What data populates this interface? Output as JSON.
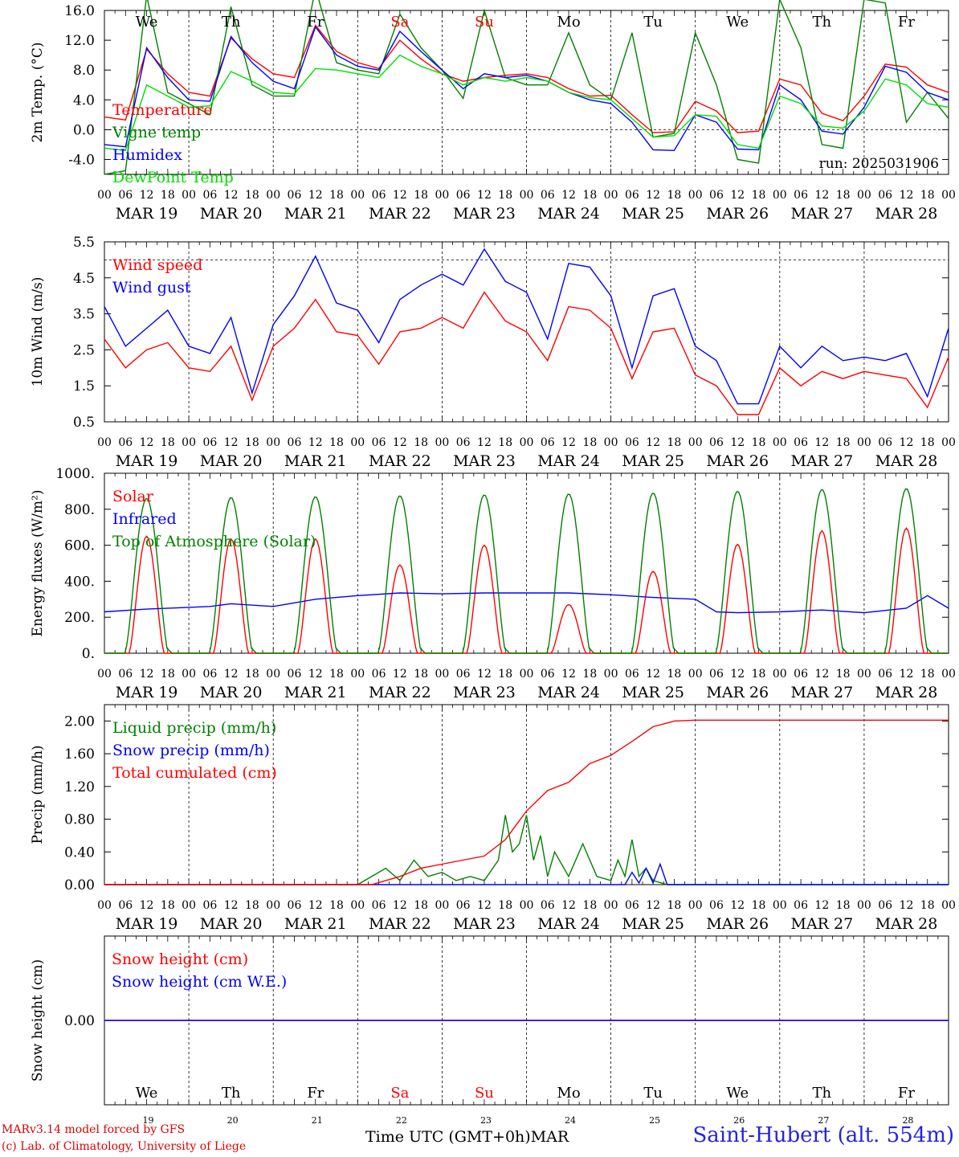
{
  "footer": {
    "credit_line1": "MARv3.14 model forced by GFS",
    "credit_line2": "(c) Lab. of Climatology, University of Liege",
    "x_title": "Time UTC (GMT+0h)MAR",
    "station": "Saint-Hubert (alt. 554m)"
  },
  "colors": {
    "red": "#ff0000",
    "blue": "#0000ff",
    "green": "#008000",
    "lightgreen": "#00dd00",
    "weekend": "#ff0000"
  },
  "days": [
    {
      "abbr": "We",
      "date": "MAR 19",
      "num": "19",
      "weekend": false
    },
    {
      "abbr": "Th",
      "date": "MAR 20",
      "num": "20",
      "weekend": false
    },
    {
      "abbr": "Fr",
      "date": "MAR 21",
      "num": "21",
      "weekend": false
    },
    {
      "abbr": "Sa",
      "date": "MAR 22",
      "num": "22",
      "weekend": true
    },
    {
      "abbr": "Su",
      "date": "MAR 23",
      "num": "23",
      "weekend": true
    },
    {
      "abbr": "Mo",
      "date": "MAR 24",
      "num": "24",
      "weekend": false
    },
    {
      "abbr": "Tu",
      "date": "MAR 25",
      "num": "25",
      "weekend": false
    },
    {
      "abbr": "We",
      "date": "MAR 26",
      "num": "26",
      "weekend": false
    },
    {
      "abbr": "Th",
      "date": "MAR 27",
      "num": "27",
      "weekend": false
    },
    {
      "abbr": "Fr",
      "date": "MAR 28",
      "num": "28",
      "weekend": false
    }
  ],
  "hour_ticks": [
    "00",
    "06",
    "12",
    "18"
  ],
  "final_hour": "00",
  "chart_data": [
    {
      "type": "line",
      "ylabel": "2m Temp. (°C)",
      "ylim": [
        -6,
        16
      ],
      "yticks": [
        "16.0",
        "12.0",
        "8.0",
        "4.0",
        "0.0",
        "-4.0"
      ],
      "ytick_values": [
        16,
        12,
        8,
        4,
        0,
        -4
      ],
      "ref_line": 0,
      "annotation": "run: 2025031906",
      "x_unit": "hours from MAR 19 00 UTC",
      "series": [
        {
          "name": "Temperature",
          "color": "#ff0000",
          "x": [
            0,
            6,
            12,
            18,
            24,
            30,
            36,
            42,
            48,
            54,
            60,
            66,
            72,
            78,
            84,
            90,
            96,
            102,
            108,
            114,
            120,
            126,
            132,
            138,
            144,
            150,
            156,
            162,
            168,
            174,
            180,
            186,
            192,
            198,
            204,
            210,
            216,
            222,
            228,
            234,
            240
          ],
          "values": [
            1.7,
            1.3,
            10.8,
            7.5,
            5.0,
            4.5,
            12.3,
            9.5,
            7.5,
            7.0,
            14.0,
            10.5,
            9.0,
            8.2,
            12.0,
            9.5,
            7.5,
            6.5,
            7.0,
            7.3,
            7.5,
            7.0,
            5.5,
            4.5,
            4.6,
            2.0,
            -0.4,
            -0.3,
            3.8,
            2.5,
            -0.4,
            -0.2,
            6.8,
            6.0,
            2.2,
            1.2,
            4.5,
            8.8,
            8.4,
            6.0,
            5.0
          ]
        },
        {
          "name": "Vigne temp",
          "color": "#008000",
          "x": [
            0,
            6,
            12,
            18,
            24,
            30,
            36,
            42,
            48,
            54,
            60,
            66,
            72,
            78,
            84,
            90,
            96,
            102,
            108,
            114,
            120,
            126,
            132,
            138,
            144,
            150,
            156,
            162,
            168,
            174,
            180,
            186,
            192,
            198,
            204,
            210,
            216,
            222,
            228,
            234,
            240
          ],
          "values": [
            -6.0,
            -5.5,
            18.0,
            5.0,
            3.5,
            2.0,
            16.5,
            6.0,
            4.5,
            4.5,
            19.0,
            9.0,
            8.0,
            7.5,
            15.5,
            11.0,
            8.0,
            4.2,
            16.0,
            7.0,
            6.0,
            6.0,
            13.0,
            6.0,
            4.0,
            13.0,
            -1.0,
            -0.5,
            13.0,
            6.0,
            -4.0,
            -4.5,
            17.5,
            11.0,
            -2.0,
            -2.5,
            17.5,
            17.0,
            1.0,
            5.0,
            1.5
          ]
        },
        {
          "name": "Humidex",
          "color": "#0000ff",
          "x": [
            0,
            6,
            12,
            18,
            24,
            30,
            36,
            42,
            48,
            54,
            60,
            66,
            72,
            78,
            84,
            90,
            96,
            102,
            108,
            114,
            120,
            126,
            132,
            138,
            144,
            150,
            156,
            162,
            168,
            174,
            180,
            186,
            192,
            198,
            204,
            210,
            216,
            222,
            228,
            234,
            240
          ],
          "values": [
            -2.0,
            -2.3,
            11.0,
            7.0,
            4.0,
            3.8,
            12.5,
            9.0,
            6.5,
            5.5,
            13.8,
            10.0,
            8.5,
            8.0,
            13.2,
            10.5,
            8.0,
            5.5,
            7.5,
            7.0,
            7.3,
            6.5,
            5.0,
            4.0,
            3.5,
            1.0,
            -2.7,
            -2.8,
            2.0,
            1.0,
            -2.6,
            -2.7,
            6.0,
            4.0,
            -0.2,
            -0.6,
            3.0,
            8.5,
            7.7,
            5.0,
            4.0
          ]
        },
        {
          "name": "DewPoint Temp",
          "color": "#00dd00",
          "x": [
            0,
            6,
            12,
            18,
            24,
            30,
            36,
            42,
            48,
            54,
            60,
            66,
            72,
            78,
            84,
            90,
            96,
            102,
            108,
            114,
            120,
            126,
            132,
            138,
            144,
            150,
            156,
            162,
            168,
            174,
            180,
            186,
            192,
            198,
            204,
            210,
            216,
            222,
            228,
            234,
            240
          ],
          "values": [
            -2.5,
            -2.8,
            6.0,
            4.5,
            3.0,
            3.2,
            7.8,
            6.5,
            5.0,
            4.8,
            8.2,
            8.0,
            7.5,
            7.0,
            10.0,
            8.5,
            7.5,
            6.0,
            7.0,
            6.5,
            7.0,
            6.5,
            5.0,
            4.3,
            4.0,
            1.5,
            -1.0,
            -0.8,
            2.0,
            1.8,
            -2.0,
            -2.5,
            4.5,
            3.5,
            0.5,
            0.2,
            2.5,
            6.8,
            6.0,
            3.5,
            3.0
          ]
        }
      ]
    },
    {
      "type": "line",
      "ylabel": "10m Wind (m/s)",
      "ylim": [
        0.5,
        5.5
      ],
      "yticks": [
        "5.5",
        "4.5",
        "3.5",
        "2.5",
        "1.5",
        "0.5"
      ],
      "ytick_values": [
        5.5,
        4.5,
        3.5,
        2.5,
        1.5,
        0.5
      ],
      "ref_line": 5,
      "x_unit": "hours from MAR 19 00 UTC",
      "series": [
        {
          "name": "Wind speed",
          "color": "#ff0000",
          "x": [
            0,
            6,
            12,
            18,
            24,
            30,
            36,
            42,
            48,
            54,
            60,
            66,
            72,
            78,
            84,
            90,
            96,
            102,
            108,
            114,
            120,
            126,
            132,
            138,
            144,
            150,
            156,
            162,
            168,
            174,
            180,
            186,
            192,
            198,
            204,
            210,
            216,
            222,
            228,
            234,
            240
          ],
          "values": [
            2.8,
            2.0,
            2.5,
            2.7,
            2.0,
            1.9,
            2.6,
            1.1,
            2.6,
            3.1,
            3.9,
            3.0,
            2.9,
            2.1,
            3.0,
            3.1,
            3.4,
            3.1,
            4.1,
            3.3,
            3.0,
            2.2,
            3.7,
            3.6,
            3.1,
            1.7,
            3.0,
            3.1,
            1.8,
            1.5,
            0.7,
            0.7,
            2.0,
            1.5,
            1.9,
            1.7,
            1.9,
            1.8,
            1.7,
            0.9,
            2.3
          ]
        },
        {
          "name": "Wind gust",
          "color": "#0000ff",
          "x": [
            0,
            6,
            12,
            18,
            24,
            30,
            36,
            42,
            48,
            54,
            60,
            66,
            72,
            78,
            84,
            90,
            96,
            102,
            108,
            114,
            120,
            126,
            132,
            138,
            144,
            150,
            156,
            162,
            168,
            174,
            180,
            186,
            192,
            198,
            204,
            210,
            216,
            222,
            228,
            234,
            240
          ],
          "values": [
            3.7,
            2.6,
            3.1,
            3.6,
            2.6,
            2.4,
            3.4,
            1.3,
            3.2,
            4.0,
            5.1,
            3.8,
            3.6,
            2.7,
            3.9,
            4.3,
            4.6,
            4.3,
            5.3,
            4.4,
            4.1,
            2.8,
            4.9,
            4.8,
            4.0,
            2.0,
            4.0,
            4.2,
            2.6,
            2.2,
            1.0,
            1.0,
            2.6,
            2.0,
            2.6,
            2.2,
            2.3,
            2.2,
            2.4,
            1.2,
            3.1
          ]
        }
      ]
    },
    {
      "type": "line",
      "ylabel": "Energy fluxes (W/m²)",
      "ylim": [
        0,
        1000
      ],
      "yticks": [
        "1000.",
        "800.",
        "600.",
        "400.",
        "200.",
        "0."
      ],
      "ytick_values": [
        1000,
        800,
        600,
        400,
        200,
        0
      ],
      "x_unit": "hours from MAR 19 00 UTC",
      "series": [
        {
          "name": "Solar",
          "color": "#ff0000",
          "daily_peaks": [
            650,
            635,
            635,
            490,
            600,
            270,
            455,
            605,
            680,
            695
          ],
          "daily_peak_hour": 12
        },
        {
          "name": "Infrared",
          "color": "#0000ff",
          "x": [
            0,
            12,
            24,
            30,
            36,
            48,
            60,
            72,
            84,
            96,
            108,
            120,
            132,
            144,
            156,
            168,
            174,
            180,
            192,
            204,
            216,
            228,
            234,
            240
          ],
          "values": [
            230,
            245,
            255,
            260,
            275,
            260,
            300,
            320,
            335,
            330,
            335,
            335,
            335,
            325,
            310,
            300,
            230,
            225,
            230,
            240,
            225,
            250,
            320,
            250
          ]
        },
        {
          "name": "Top of Atmosphere (Solar)",
          "color": "#008000",
          "daily_peaks": [
            860,
            865,
            870,
            875,
            880,
            885,
            890,
            900,
            910,
            915
          ],
          "daily_peak_hour": 12
        }
      ]
    },
    {
      "type": "line",
      "ylabel": "Precip (mm/h)",
      "ylim": [
        0,
        2.2
      ],
      "yticks": [
        "2.00",
        "1.60",
        "1.20",
        "0.80",
        "0.40",
        "0.00"
      ],
      "ytick_values": [
        2.0,
        1.6,
        1.2,
        0.8,
        0.4,
        0.0
      ],
      "x_unit": "hours from MAR 19 00 UTC",
      "series": [
        {
          "name": "Liquid precip (mm/h)",
          "color": "#008000",
          "x": [
            0,
            72,
            80,
            84,
            88,
            92,
            96,
            100,
            104,
            108,
            112,
            114,
            116,
            118,
            120,
            122,
            124,
            126,
            128,
            132,
            136,
            140,
            144,
            146,
            148,
            150,
            152,
            154,
            156,
            160,
            240
          ],
          "values": [
            0,
            0,
            0.2,
            0.05,
            0.3,
            0.1,
            0.15,
            0.05,
            0.1,
            0.05,
            0.3,
            0.85,
            0.4,
            0.5,
            0.85,
            0.3,
            0.6,
            0.1,
            0.4,
            0.1,
            0.5,
            0.1,
            0.05,
            0.3,
            0.1,
            0.55,
            0.1,
            0.2,
            0.05,
            0,
            0
          ]
        },
        {
          "name": "Snow precip (mm/h)",
          "color": "#0000ff",
          "x": [
            0,
            148,
            150,
            152,
            154,
            156,
            158,
            160,
            240
          ],
          "values": [
            0,
            0,
            0.15,
            0.02,
            0.2,
            0.02,
            0.25,
            0,
            0
          ]
        },
        {
          "name": "Total cumulated (cm)",
          "color": "#ff0000",
          "x": [
            0,
            76,
            84,
            90,
            96,
            108,
            114,
            120,
            126,
            132,
            138,
            144,
            150,
            156,
            162,
            168,
            240
          ],
          "values": [
            0,
            0,
            0.1,
            0.2,
            0.25,
            0.35,
            0.55,
            0.9,
            1.15,
            1.25,
            1.48,
            1.58,
            1.75,
            1.93,
            2.0,
            2.01,
            2.01
          ]
        }
      ]
    },
    {
      "type": "line",
      "ylabel": "Snow height (cm)",
      "ylim": [
        -0.5,
        0.5
      ],
      "yticks": [
        "0.00"
      ],
      "ytick_values": [
        0.0
      ],
      "x_unit": "hours from MAR 19 00 UTC",
      "series": [
        {
          "name": "Snow height (cm)",
          "color": "#ff0000",
          "x": [
            0,
            240
          ],
          "values": [
            0,
            0
          ]
        },
        {
          "name": "Snow height (cm W.E.)",
          "color": "#0000ff",
          "x": [
            0,
            240
          ],
          "values": [
            0,
            0
          ]
        }
      ]
    }
  ]
}
